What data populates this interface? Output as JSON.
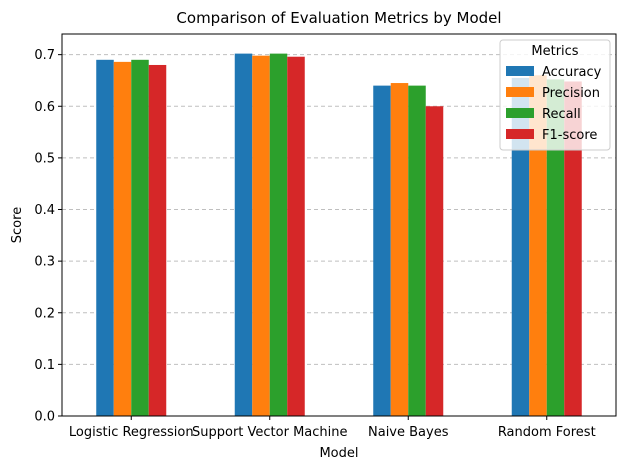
{
  "chart_data": {
    "type": "bar",
    "title": "Comparison of Evaluation Metrics by Model",
    "xlabel": "Model",
    "ylabel": "Score",
    "categories": [
      "Logistic Regression",
      "Support Vector Machine",
      "Naive Bayes",
      "Random Forest"
    ],
    "series": [
      {
        "name": "Accuracy",
        "color": "#1f77b4",
        "values": [
          0.69,
          0.702,
          0.64,
          0.655
        ]
      },
      {
        "name": "Precision",
        "color": "#ff7f0e",
        "values": [
          0.686,
          0.698,
          0.645,
          0.66
        ]
      },
      {
        "name": "Recall",
        "color": "#2ca02c",
        "values": [
          0.69,
          0.702,
          0.64,
          0.652
        ]
      },
      {
        "name": "F1-score",
        "color": "#d62728",
        "values": [
          0.68,
          0.696,
          0.6,
          0.648
        ]
      }
    ],
    "ylim": [
      0,
      0.74
    ],
    "yticks": [
      "0.0",
      "0.1",
      "0.2",
      "0.3",
      "0.4",
      "0.5",
      "0.6",
      "0.7"
    ],
    "grid": "y-dashed",
    "legend": {
      "title": "Metrics",
      "placement": "top-right"
    }
  }
}
